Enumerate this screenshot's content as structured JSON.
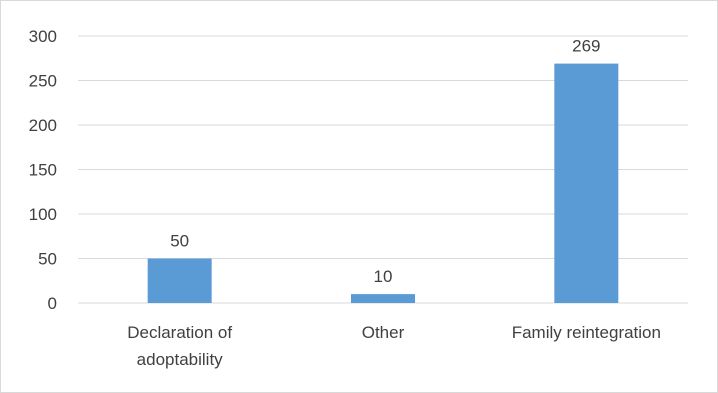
{
  "chart_data": {
    "type": "bar",
    "categories": [
      [
        "Declaration of",
        "adoptability"
      ],
      [
        "Other"
      ],
      [
        "Family reintegration"
      ]
    ],
    "values": [
      50,
      10,
      269
    ],
    "data_labels": [
      "50",
      "10",
      "269"
    ],
    "title": "",
    "xlabel": "",
    "ylabel": "",
    "ylim": [
      0,
      300
    ],
    "yticks": [
      0,
      50,
      100,
      150,
      200,
      250,
      300
    ],
    "grid": true,
    "legend": "none",
    "bar_color": "#5b9bd5",
    "grid_color": "#d9d9d9"
  }
}
